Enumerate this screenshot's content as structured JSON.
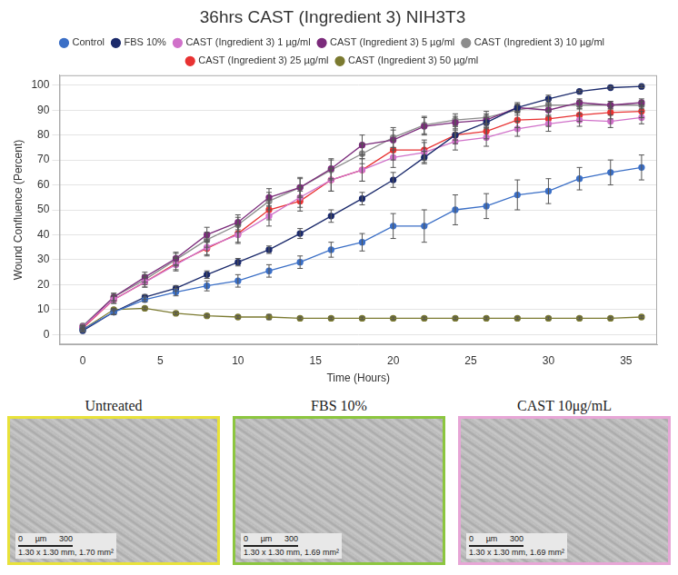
{
  "chart_data": {
    "type": "line",
    "title": "36hrs CAST (Ingredient 3) NIH3T3",
    "x_label": "Time (Hours)",
    "y_label": "Wound Confluence (Percent)",
    "x": [
      0,
      2,
      4,
      6,
      8,
      10,
      12,
      14,
      16,
      18,
      20,
      22,
      24,
      26,
      28,
      30,
      32,
      34,
      36
    ],
    "xlim": [
      -1.5,
      37
    ],
    "xticks": [
      0,
      5,
      10,
      15,
      20,
      25,
      30,
      35
    ],
    "ylim": [
      -4,
      104
    ],
    "yticks": [
      0,
      10,
      20,
      30,
      40,
      50,
      60,
      70,
      80,
      90,
      100
    ],
    "grid": true,
    "legend": "top",
    "marker": "circle",
    "line_style": "solid",
    "series": [
      {
        "name": "Control",
        "color": "#3b6fc6",
        "values": [
          2,
          9,
          14,
          17,
          19.5,
          21.5,
          25.5,
          29,
          34,
          37,
          43.5,
          43.5,
          50,
          51.5,
          56,
          57.5,
          62.5,
          65,
          67
        ],
        "errors": [
          0.5,
          1,
          1,
          1.5,
          2,
          2.5,
          2.5,
          2.5,
          3,
          3.5,
          5,
          6.5,
          6,
          5,
          6,
          5,
          4.5,
          5,
          5
        ]
      },
      {
        "name": "FBS 10%",
        "color": "#1b2a6b",
        "values": [
          1.5,
          9,
          15,
          18.5,
          24,
          29,
          34,
          40.5,
          47.5,
          54.5,
          62,
          71,
          80,
          85,
          91,
          94.5,
          97.5,
          99,
          99.5
        ],
        "errors": [
          0.5,
          1,
          1,
          1,
          1.5,
          1.5,
          1.5,
          2,
          2.5,
          2.5,
          3,
          2.5,
          2,
          2,
          1.5,
          1.5,
          0.5,
          0.5,
          0.5
        ]
      },
      {
        "name": "CAST (Ingredient 3) 1 µg/ml",
        "color": "#d071c9",
        "values": [
          3,
          14,
          21,
          28,
          35,
          40,
          47.5,
          55,
          62,
          66,
          71,
          73,
          77.5,
          79,
          82.5,
          84.5,
          86,
          85.5,
          87
        ],
        "errors": [
          0.5,
          1.5,
          2,
          2.5,
          3,
          3.5,
          4,
          4,
          4.5,
          4.5,
          4,
          4,
          3.5,
          3.5,
          3,
          3,
          2.5,
          2.5,
          2.5
        ]
      },
      {
        "name": "CAST (Ingredient 3) 5 µg/ml",
        "color": "#7b2b7b",
        "values": [
          3,
          15,
          23,
          30.5,
          40,
          45,
          55,
          59,
          66.5,
          76,
          78,
          83.5,
          85,
          86,
          91,
          90,
          93,
          92,
          93
        ],
        "errors": [
          0.5,
          1.5,
          2,
          2.5,
          3,
          3,
          3.5,
          4,
          4,
          4,
          4,
          3.5,
          2.5,
          2.5,
          2,
          2,
          1.5,
          1.5,
          1.5
        ]
      },
      {
        "name": "CAST (Ingredient 3) 10 µg/ml",
        "color": "#8c8c8c",
        "values": [
          3.5,
          15,
          22,
          30,
          38,
          44,
          53.5,
          59,
          66,
          72.5,
          79,
          84,
          86,
          87,
          90,
          92,
          92,
          92,
          92
        ],
        "errors": [
          0.5,
          1.5,
          2,
          2.5,
          3,
          3,
          3.5,
          3.5,
          4,
          4,
          4,
          3.5,
          2.5,
          2.5,
          2,
          2,
          1.5,
          1.5,
          1.5
        ]
      },
      {
        "name": "CAST (Ingredient 3) 25 µg/ml",
        "color": "#e83232",
        "values": [
          2.5,
          14,
          21,
          28.5,
          34.5,
          40.5,
          50,
          53.5,
          62,
          66,
          74,
          74,
          80,
          81.5,
          86,
          86.5,
          88,
          89,
          89.5
        ],
        "errors": [
          0.5,
          1.5,
          2,
          2.5,
          3,
          3.5,
          4,
          4,
          4.5,
          4.5,
          4,
          4,
          3.5,
          3,
          3,
          3,
          2.5,
          2.5,
          2.5
        ]
      },
      {
        "name": "CAST (Ingredient 3) 50 µg/ml",
        "color": "#7b7a30",
        "values": [
          2,
          10,
          10.5,
          8.5,
          7.5,
          7,
          7,
          6.5,
          6.5,
          6.5,
          6.5,
          6.5,
          6.5,
          6.5,
          6.5,
          6.5,
          6.5,
          6.5,
          7
        ],
        "errors": [
          0.5,
          0.5,
          0.5,
          0.5,
          0.5,
          0.5,
          1,
          0.5,
          0.5,
          0.5,
          0.5,
          0.5,
          0.5,
          0.5,
          0.5,
          0.5,
          0.5,
          0.5,
          0.5
        ]
      }
    ]
  },
  "image_panels": [
    {
      "caption": "Untreated",
      "border_color": "#e8e23a",
      "scale_bar": [
        "0",
        "µm",
        "300"
      ],
      "info": "1.30 x 1.30 mm, 1.70 mm²"
    },
    {
      "caption": "FBS 10%",
      "border_color": "#8cc63f",
      "scale_bar": [
        "0",
        "µm",
        "300"
      ],
      "info": "1.30 x 1.30 mm, 1.69 mm²"
    },
    {
      "caption": "CAST 10μg/mL",
      "border_color": "#e7a6d6",
      "scale_bar": [
        "0",
        "µm",
        "300"
      ],
      "info": "1.30 x 1.30 mm, 1.69 mm²"
    }
  ]
}
